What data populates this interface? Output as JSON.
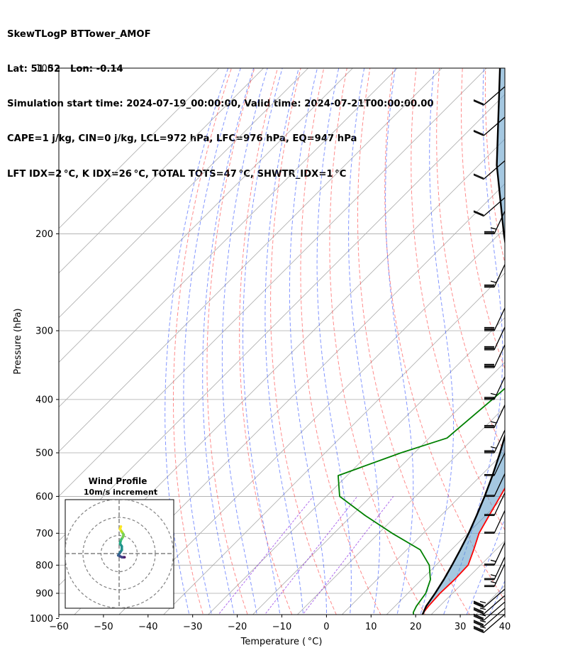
{
  "header": {
    "line1": "SkewTLogP BTTower_AMOF",
    "line2": "Lat: 51.52   Lon: -0.14",
    "line3": "Simulation start time: 2024-07-19_00:00:00, Valid time: 2024-07-21T00:00:00.00",
    "line4": "CAPE=1 j/kg, CIN=0 j/kg, LCL=972 hPa, LFC=976 hPa, EQ=947 hPa",
    "line5": "LFT IDX=2 °C, K IDX=26 °C, TOTAL TOTS=47 °C, SHWTR_IDX=1 °C"
  },
  "colors": {
    "temperature": "#ff0000",
    "dewpoint": "#008000",
    "parcel": "#000000",
    "cape_fill": "#5b9bc8",
    "isotherm": "#aaaaaa",
    "dry_adiabat": "#ff4040",
    "moist_adiabat": "#3050ff",
    "mixing_ratio": "#8a2be2",
    "hodograph_ring": "#808080"
  },
  "chart_data": {
    "type": "skew-t log-p",
    "xlabel": "Temperature ( °C)",
    "ylabel": "Pressure (hPa)",
    "xlim": [
      -60,
      40
    ],
    "ylim": [
      1050,
      100
    ],
    "x_ticks": [
      "−60",
      "−50",
      "−40",
      "−30",
      "−20",
      "−10",
      "0",
      "10",
      "20",
      "30",
      "40"
    ],
    "y_ticks": [
      "100",
      "200",
      "300",
      "400",
      "500",
      "600",
      "700",
      "800",
      "900",
      "1000"
    ],
    "y_tick_values": [
      100,
      200,
      300,
      400,
      500,
      600,
      700,
      800,
      900,
      1000
    ],
    "grid": true,
    "temperature": [
      [
        1000,
        18.5
      ],
      [
        975,
        17.8
      ],
      [
        950,
        17.5
      ],
      [
        900,
        17.2
      ],
      [
        850,
        17.4
      ],
      [
        800,
        17.2
      ],
      [
        750,
        15.0
      ],
      [
        700,
        12.5
      ],
      [
        650,
        10.8
      ],
      [
        600,
        9.0
      ],
      [
        550,
        7.0
      ],
      [
        500,
        4.5
      ],
      [
        450,
        2.0
      ],
      [
        400,
        -1.0
      ],
      [
        350,
        -4.0
      ],
      [
        300,
        -7.5
      ],
      [
        290,
        -8.5
      ],
      [
        270,
        -9.3
      ],
      [
        250,
        -8.0
      ],
      [
        230,
        -6.0
      ],
      [
        210,
        -3.0
      ],
      [
        200,
        -1.0
      ],
      [
        180,
        3.5
      ],
      [
        160,
        8.0
      ],
      [
        140,
        12.0
      ],
      [
        120,
        16.5
      ],
      [
        100,
        22.0
      ]
    ],
    "dewpoint": [
      [
        1000,
        17.0
      ],
      [
        975,
        15.5
      ],
      [
        950,
        14.8
      ],
      [
        900,
        14.0
      ],
      [
        850,
        12.0
      ],
      [
        800,
        8.5
      ],
      [
        750,
        3.0
      ],
      [
        700,
        -7.0
      ],
      [
        650,
        -17.0
      ],
      [
        600,
        -27.0
      ],
      [
        550,
        -32.0
      ],
      [
        500,
        -23.0
      ],
      [
        470,
        -16.0
      ],
      [
        400,
        -14.5
      ],
      [
        350,
        -13.5
      ],
      [
        320,
        -15.0
      ],
      [
        290,
        -19.5
      ],
      [
        250,
        -25.0
      ],
      [
        230,
        -30.0
      ],
      [
        200,
        -45.0
      ],
      [
        185,
        -50.0
      ],
      [
        150,
        -52.0
      ],
      [
        120,
        -54.0
      ],
      [
        100,
        -56.0
      ]
    ],
    "parcel": [
      [
        1000,
        18.5
      ],
      [
        975,
        17.8
      ],
      [
        950,
        17.0
      ],
      [
        900,
        16.1
      ],
      [
        850,
        15.0
      ],
      [
        800,
        13.6
      ],
      [
        750,
        12.0
      ],
      [
        700,
        10.2
      ],
      [
        650,
        8.0
      ],
      [
        600,
        5.5
      ],
      [
        550,
        2.6
      ],
      [
        500,
        -0.8
      ],
      [
        450,
        -4.8
      ],
      [
        400,
        -9.8
      ],
      [
        350,
        -16.2
      ],
      [
        300,
        -24.5
      ],
      [
        250,
        -35.2
      ],
      [
        200,
        -49.0
      ],
      [
        150,
        -66.0
      ],
      [
        100,
        -87.0
      ]
    ],
    "cape_shading": true,
    "wind_barbs": [
      {
        "p": 1000,
        "speed_kt": 25,
        "dir": 300
      },
      {
        "p": 975,
        "speed_kt": 25,
        "dir": 300
      },
      {
        "p": 950,
        "speed_kt": 25,
        "dir": 300
      },
      {
        "p": 925,
        "speed_kt": 25,
        "dir": 300
      },
      {
        "p": 900,
        "speed_kt": 25,
        "dir": 300
      },
      {
        "p": 875,
        "speed_kt": 15,
        "dir": 270
      },
      {
        "p": 850,
        "speed_kt": 15,
        "dir": 270
      },
      {
        "p": 800,
        "speed_kt": 15,
        "dir": 270
      },
      {
        "p": 700,
        "speed_kt": 20,
        "dir": 270
      },
      {
        "p": 650,
        "speed_kt": 20,
        "dir": 270
      },
      {
        "p": 600,
        "speed_kt": 20,
        "dir": 270
      },
      {
        "p": 550,
        "speed_kt": 20,
        "dir": 270
      },
      {
        "p": 500,
        "speed_kt": 25,
        "dir": 270
      },
      {
        "p": 450,
        "speed_kt": 25,
        "dir": 270
      },
      {
        "p": 400,
        "speed_kt": 25,
        "dir": 270
      },
      {
        "p": 350,
        "speed_kt": 40,
        "dir": 270
      },
      {
        "p": 325,
        "speed_kt": 40,
        "dir": 270
      },
      {
        "p": 300,
        "speed_kt": 40,
        "dir": 270
      },
      {
        "p": 250,
        "speed_kt": 25,
        "dir": 270
      },
      {
        "p": 200,
        "speed_kt": 25,
        "dir": 310
      },
      {
        "p": 175,
        "speed_kt": 20,
        "dir": 300
      },
      {
        "p": 150,
        "speed_kt": 20,
        "dir": 300
      },
      {
        "p": 125,
        "speed_kt": 20,
        "dir": 300
      },
      {
        "p": 110,
        "speed_kt": 20,
        "dir": 300
      }
    ],
    "hodograph": {
      "title": "Wind Profile",
      "subtitle": "10m/s increment",
      "rings_ms": [
        10,
        20,
        30
      ],
      "points": [
        [
          3,
          -2
        ],
        [
          2.5,
          -2
        ],
        [
          1.5,
          -2
        ],
        [
          0.5,
          -1.5
        ],
        [
          -0.5,
          -1
        ],
        [
          0.5,
          0.5
        ],
        [
          1.5,
          2
        ],
        [
          1.5,
          4
        ],
        [
          0.5,
          5.5
        ],
        [
          1,
          7.5
        ],
        [
          2,
          9
        ],
        [
          2.5,
          10.5
        ],
        [
          1.5,
          12
        ],
        [
          0.5,
          13.5
        ],
        [
          1,
          15
        ]
      ]
    }
  }
}
